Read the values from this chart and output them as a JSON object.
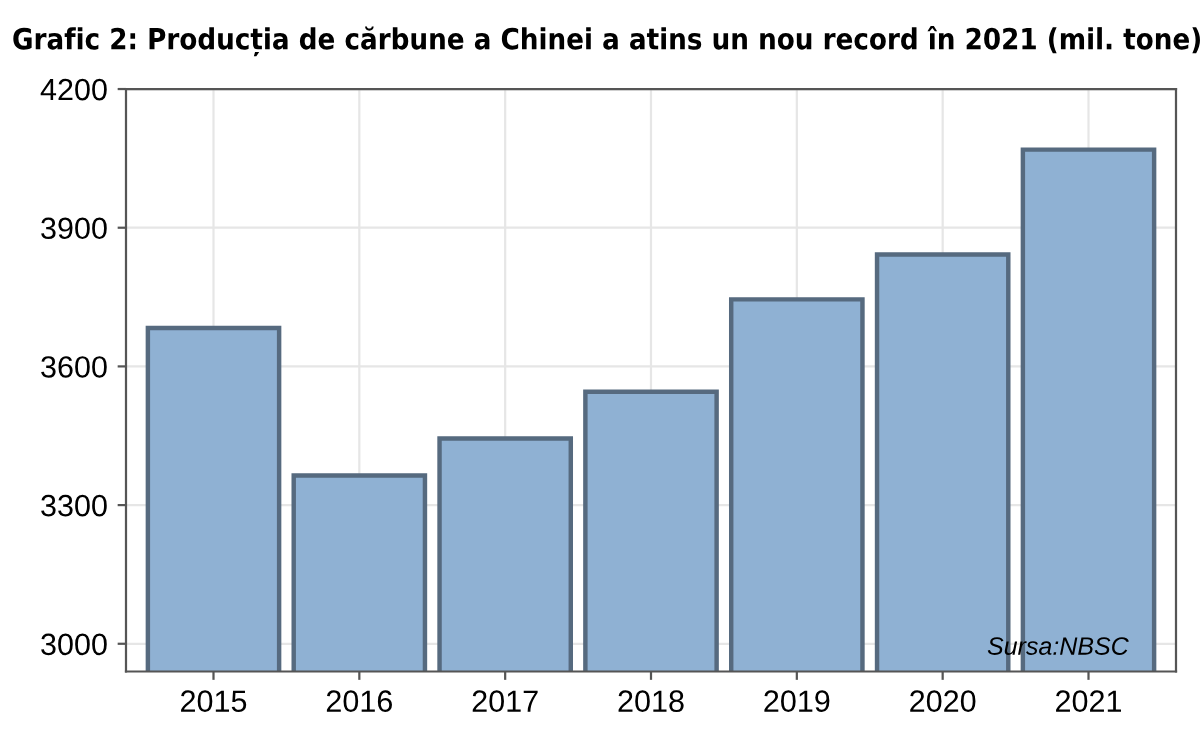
{
  "chart_data": {
    "type": "bar",
    "title": "Grafic 2: Producția de cărbune a Chinei a atins un nou record în 2021 (mil. tone)",
    "categories": [
      "2015",
      "2016",
      "2017",
      "2018",
      "2019",
      "2020",
      "2021"
    ],
    "series": [
      {
        "color": "#8fb1d3",
        "values": [
          3683,
          3364,
          3444,
          3545,
          3745,
          3842,
          4069
        ]
      }
    ],
    "ylim": [
      2940,
      4200
    ],
    "yticks": [
      3000,
      3300,
      3600,
      3900,
      4200
    ],
    "grid": true,
    "annotations": [
      "Sursa:NBSC"
    ]
  }
}
